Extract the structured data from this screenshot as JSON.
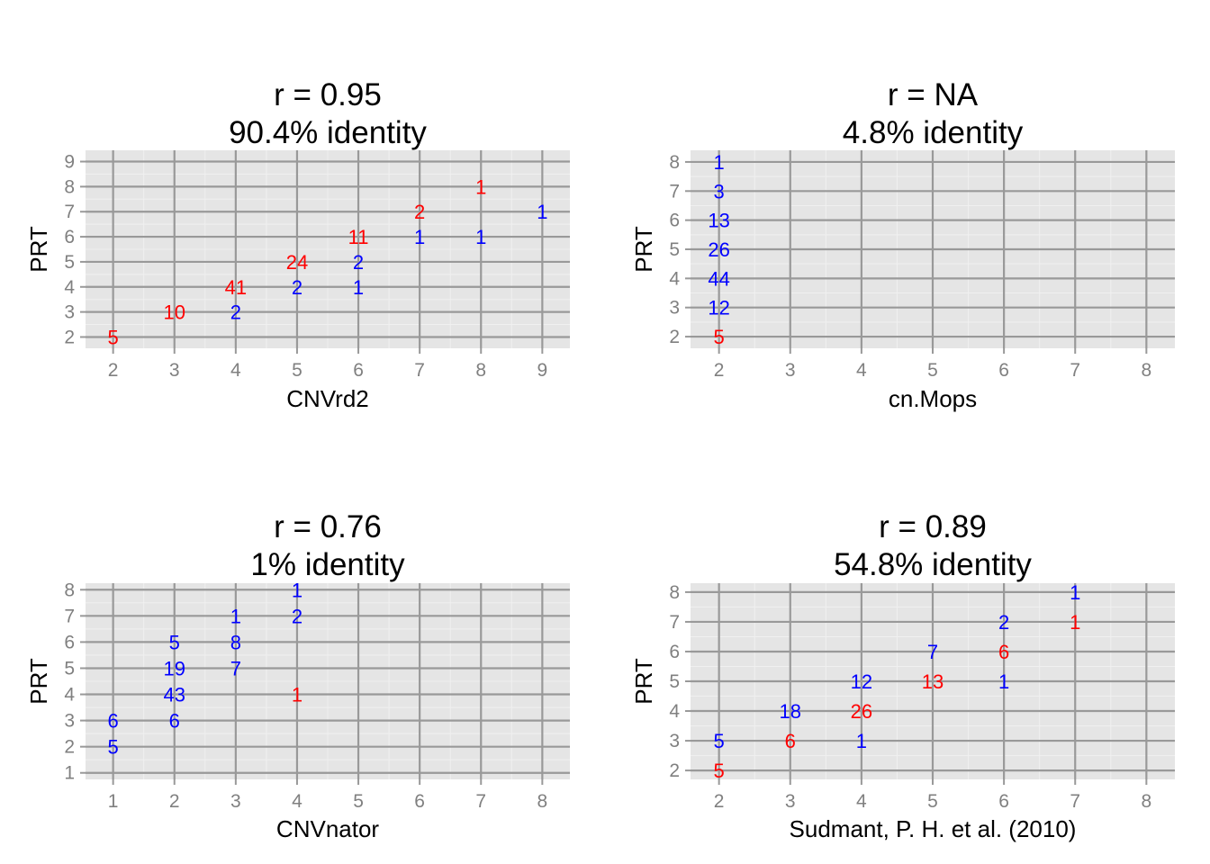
{
  "colors": {
    "panel_bg": "#e5e5e5",
    "major_grid": "#999999",
    "minor_grid": "#f0f0f0",
    "tick_text": "#808080",
    "blue": "#0000ff",
    "red": "#ff0000"
  },
  "chart_data": [
    {
      "type": "scatter",
      "title": "r = 0.95",
      "subtitle": "90.4% identity",
      "xlabel": "CNVrd2",
      "ylabel": "PRT",
      "x_ticks": [
        2,
        3,
        4,
        5,
        6,
        7,
        8,
        9
      ],
      "y_ticks": [
        2,
        3,
        4,
        5,
        6,
        7,
        8,
        9
      ],
      "xlim": [
        1.55,
        9.45
      ],
      "ylim": [
        1.55,
        9.45
      ],
      "grid": true,
      "points": [
        {
          "x": 2,
          "y": 2,
          "label": "5",
          "color": "red"
        },
        {
          "x": 3,
          "y": 3,
          "label": "10",
          "color": "red"
        },
        {
          "x": 4,
          "y": 3,
          "label": "2",
          "color": "blue"
        },
        {
          "x": 4,
          "y": 4,
          "label": "41",
          "color": "red"
        },
        {
          "x": 5,
          "y": 4,
          "label": "2",
          "color": "blue"
        },
        {
          "x": 6,
          "y": 4,
          "label": "1",
          "color": "blue"
        },
        {
          "x": 5,
          "y": 5,
          "label": "24",
          "color": "red"
        },
        {
          "x": 6,
          "y": 5,
          "label": "2",
          "color": "blue"
        },
        {
          "x": 6,
          "y": 6,
          "label": "11",
          "color": "red"
        },
        {
          "x": 7,
          "y": 6,
          "label": "1",
          "color": "blue"
        },
        {
          "x": 8,
          "y": 6,
          "label": "1",
          "color": "blue"
        },
        {
          "x": 7,
          "y": 7,
          "label": "2",
          "color": "red"
        },
        {
          "x": 9,
          "y": 7,
          "label": "1",
          "color": "blue"
        },
        {
          "x": 8,
          "y": 8,
          "label": "1",
          "color": "red"
        }
      ]
    },
    {
      "type": "scatter",
      "title": "r = NA",
      "subtitle": "4.8% identity",
      "xlabel": "cn.Mops",
      "ylabel": "PRT",
      "x_ticks": [
        2,
        3,
        4,
        5,
        6,
        7,
        8
      ],
      "y_ticks": [
        2,
        3,
        4,
        5,
        6,
        7,
        8
      ],
      "xlim": [
        1.6,
        8.4
      ],
      "ylim": [
        1.6,
        8.4
      ],
      "grid": true,
      "points": [
        {
          "x": 2,
          "y": 2,
          "label": "5",
          "color": "red"
        },
        {
          "x": 2,
          "y": 3,
          "label": "12",
          "color": "blue"
        },
        {
          "x": 2,
          "y": 4,
          "label": "44",
          "color": "blue"
        },
        {
          "x": 2,
          "y": 5,
          "label": "26",
          "color": "blue"
        },
        {
          "x": 2,
          "y": 6,
          "label": "13",
          "color": "blue"
        },
        {
          "x": 2,
          "y": 7,
          "label": "3",
          "color": "blue"
        },
        {
          "x": 2,
          "y": 8,
          "label": "1",
          "color": "blue"
        }
      ]
    },
    {
      "type": "scatter",
      "title": "r = 0.76",
      "subtitle": "1% identity",
      "xlabel": "CNVnator",
      "ylabel": "PRT",
      "x_ticks": [
        1,
        2,
        3,
        4,
        5,
        6,
        7,
        8
      ],
      "y_ticks": [
        1,
        2,
        3,
        4,
        5,
        6,
        7,
        8
      ],
      "xlim": [
        0.55,
        8.45
      ],
      "ylim": [
        0.75,
        8.25
      ],
      "grid": true,
      "points": [
        {
          "x": 1,
          "y": 2,
          "label": "5",
          "color": "blue"
        },
        {
          "x": 1,
          "y": 3,
          "label": "6",
          "color": "blue"
        },
        {
          "x": 2,
          "y": 3,
          "label": "6",
          "color": "blue"
        },
        {
          "x": 2,
          "y": 4,
          "label": "43",
          "color": "blue"
        },
        {
          "x": 2,
          "y": 5,
          "label": "19",
          "color": "blue"
        },
        {
          "x": 2,
          "y": 6,
          "label": "5",
          "color": "blue"
        },
        {
          "x": 3,
          "y": 5,
          "label": "7",
          "color": "blue"
        },
        {
          "x": 3,
          "y": 6,
          "label": "8",
          "color": "blue"
        },
        {
          "x": 3,
          "y": 7,
          "label": "1",
          "color": "blue"
        },
        {
          "x": 4,
          "y": 4,
          "label": "1",
          "color": "red"
        },
        {
          "x": 4,
          "y": 7,
          "label": "2",
          "color": "blue"
        },
        {
          "x": 4,
          "y": 8,
          "label": "1",
          "color": "blue"
        }
      ]
    },
    {
      "type": "scatter",
      "title": "r = 0.89",
      "subtitle": "54.8% identity",
      "xlabel": "Sudmant, P. H. et al. (2010)",
      "ylabel": "PRT",
      "x_ticks": [
        2,
        3,
        4,
        5,
        6,
        7,
        8
      ],
      "y_ticks": [
        2,
        3,
        4,
        5,
        6,
        7,
        8
      ],
      "xlim": [
        1.6,
        8.4
      ],
      "ylim": [
        1.7,
        8.3
      ],
      "grid": true,
      "points": [
        {
          "x": 2,
          "y": 2,
          "label": "5",
          "color": "red"
        },
        {
          "x": 2,
          "y": 3,
          "label": "5",
          "color": "blue"
        },
        {
          "x": 3,
          "y": 3,
          "label": "6",
          "color": "red"
        },
        {
          "x": 4,
          "y": 3,
          "label": "1",
          "color": "blue"
        },
        {
          "x": 3,
          "y": 4,
          "label": "18",
          "color": "blue"
        },
        {
          "x": 4,
          "y": 4,
          "label": "26",
          "color": "red"
        },
        {
          "x": 4,
          "y": 5,
          "label": "12",
          "color": "blue"
        },
        {
          "x": 5,
          "y": 5,
          "label": "13",
          "color": "red"
        },
        {
          "x": 6,
          "y": 5,
          "label": "1",
          "color": "blue"
        },
        {
          "x": 5,
          "y": 6,
          "label": "7",
          "color": "blue"
        },
        {
          "x": 6,
          "y": 6,
          "label": "6",
          "color": "red"
        },
        {
          "x": 6,
          "y": 7,
          "label": "2",
          "color": "blue"
        },
        {
          "x": 7,
          "y": 7,
          "label": "1",
          "color": "red"
        },
        {
          "x": 7,
          "y": 8,
          "label": "1",
          "color": "blue"
        }
      ]
    }
  ]
}
